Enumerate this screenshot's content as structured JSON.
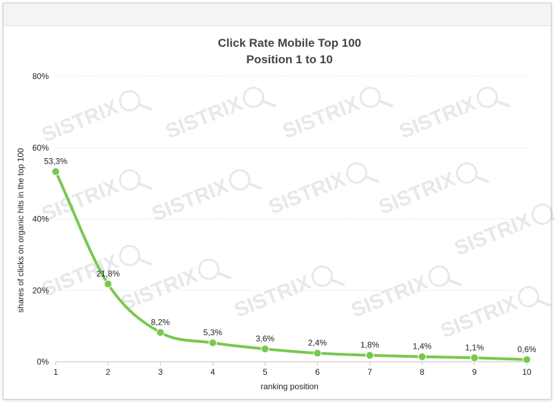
{
  "chart_data": {
    "type": "line",
    "title": "Click Rate Mobile Top 100",
    "subtitle": "Position 1 to 10",
    "xlabel": "ranking position",
    "ylabel": "shares of clicks on organic hits in the top 100",
    "x": [
      1,
      2,
      3,
      4,
      5,
      6,
      7,
      8,
      9,
      10
    ],
    "values": [
      53.3,
      21.8,
      8.2,
      5.3,
      3.6,
      2.4,
      1.8,
      1.4,
      1.1,
      0.6
    ],
    "data_labels": [
      "53,3%",
      "21,8%",
      "8,2%",
      "5,3%",
      "3,6%",
      "2,4%",
      "1,8%",
      "1,4%",
      "1,1%",
      "0,6%"
    ],
    "y_ticks": [
      "0%",
      "20%",
      "40%",
      "60%",
      "80%"
    ],
    "y_tick_values": [
      0,
      20,
      40,
      60,
      80
    ],
    "x_ticks": [
      "1",
      "2",
      "3",
      "4",
      "5",
      "6",
      "7",
      "8",
      "9",
      "10"
    ],
    "ylim": [
      0,
      80
    ],
    "grid": true,
    "legend": "none",
    "line_color": "#78c850",
    "watermark": "SISTRIX"
  }
}
